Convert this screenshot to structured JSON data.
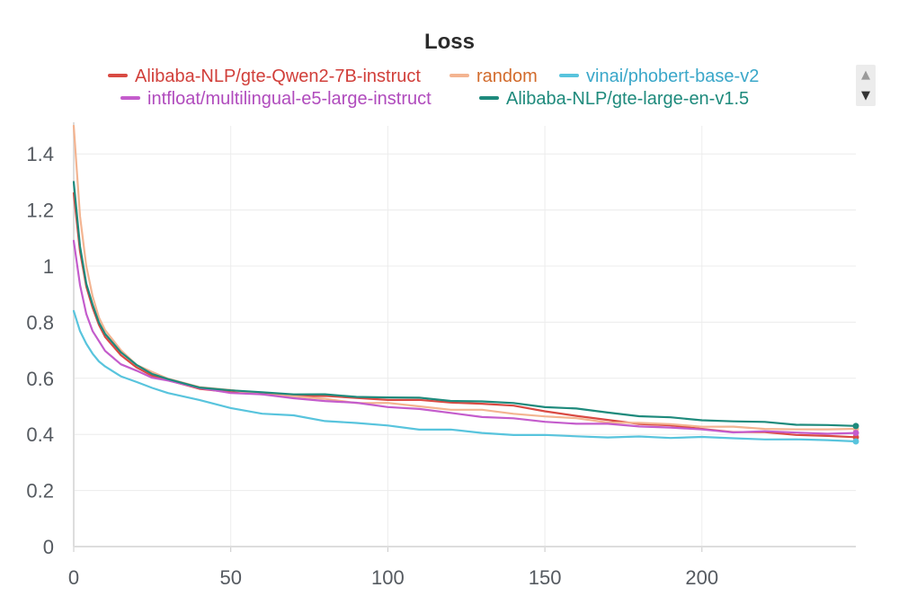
{
  "chart_data": {
    "type": "line",
    "title": "Loss",
    "xlabel": "",
    "ylabel": "",
    "xlim": [
      0,
      249
    ],
    "ylim": [
      0,
      1.5
    ],
    "x_ticks": [
      0,
      50,
      100,
      150,
      200
    ],
    "y_ticks": [
      0,
      0.2,
      0.4,
      0.6,
      0.8,
      1,
      1.2,
      1.4
    ],
    "x_tick_labels": [
      "0",
      "50",
      "100",
      "150",
      "200"
    ],
    "y_tick_labels": [
      "0",
      "0.2",
      "0.4",
      "0.6",
      "0.8",
      "1",
      "1.2",
      "1.4"
    ],
    "grid": true,
    "legend_position": "top",
    "series": [
      {
        "name": "Alibaba-NLP/gte-Qwen2-7B-instruct",
        "color": "#d94a43",
        "x": [
          0,
          2,
          4,
          6,
          8,
          10,
          15,
          20,
          25,
          30,
          40,
          50,
          60,
          70,
          80,
          90,
          100,
          110,
          120,
          130,
          140,
          150,
          160,
          170,
          180,
          190,
          200,
          210,
          220,
          230,
          240,
          249
        ],
        "y": [
          1.26,
          1.05,
          0.93,
          0.85,
          0.79,
          0.75,
          0.68,
          0.64,
          0.61,
          0.59,
          0.565,
          0.55,
          0.545,
          0.54,
          0.535,
          0.53,
          0.525,
          0.52,
          0.515,
          0.51,
          0.5,
          0.485,
          0.465,
          0.45,
          0.44,
          0.43,
          0.42,
          0.41,
          0.405,
          0.4,
          0.395,
          0.39
        ]
      },
      {
        "name": "random",
        "color": "#f3b491",
        "x": [
          0,
          2,
          4,
          6,
          8,
          10,
          15,
          20,
          25,
          30,
          40,
          50,
          60,
          70,
          80,
          90,
          100,
          110,
          120,
          130,
          140,
          150,
          160,
          170,
          180,
          190,
          200,
          210,
          220,
          230,
          240,
          249
        ],
        "y": [
          1.5,
          1.18,
          1.0,
          0.89,
          0.82,
          0.77,
          0.7,
          0.65,
          0.62,
          0.6,
          0.57,
          0.555,
          0.545,
          0.535,
          0.525,
          0.515,
          0.51,
          0.5,
          0.49,
          0.485,
          0.475,
          0.465,
          0.455,
          0.445,
          0.44,
          0.435,
          0.43,
          0.425,
          0.42,
          0.42,
          0.415,
          0.42
        ]
      },
      {
        "name": "vinai/phobert-base-v2",
        "color": "#58c4dd",
        "x": [
          0,
          2,
          4,
          6,
          8,
          10,
          15,
          20,
          25,
          30,
          40,
          50,
          60,
          70,
          80,
          90,
          100,
          110,
          120,
          130,
          140,
          150,
          160,
          170,
          180,
          190,
          200,
          210,
          220,
          230,
          240,
          249
        ],
        "y": [
          0.84,
          0.77,
          0.72,
          0.69,
          0.66,
          0.64,
          0.61,
          0.585,
          0.565,
          0.55,
          0.52,
          0.495,
          0.475,
          0.465,
          0.45,
          0.44,
          0.43,
          0.42,
          0.415,
          0.405,
          0.4,
          0.395,
          0.395,
          0.39,
          0.39,
          0.39,
          0.39,
          0.385,
          0.385,
          0.38,
          0.38,
          0.375
        ]
      },
      {
        "name": "intfloat/multilingual-e5-large-instruct",
        "color": "#c45ccc",
        "x": [
          0,
          2,
          4,
          6,
          8,
          10,
          15,
          20,
          25,
          30,
          40,
          50,
          60,
          70,
          80,
          90,
          100,
          110,
          120,
          130,
          140,
          150,
          160,
          170,
          180,
          190,
          200,
          210,
          220,
          230,
          240,
          249
        ],
        "y": [
          1.09,
          0.93,
          0.83,
          0.77,
          0.73,
          0.7,
          0.65,
          0.625,
          0.605,
          0.59,
          0.565,
          0.55,
          0.54,
          0.53,
          0.52,
          0.51,
          0.5,
          0.49,
          0.475,
          0.465,
          0.455,
          0.445,
          0.44,
          0.435,
          0.43,
          0.425,
          0.415,
          0.41,
          0.41,
          0.405,
          0.405,
          0.405
        ]
      },
      {
        "name": "Alibaba-NLP/gte-large-en-v1.5",
        "color": "#1e8a7c",
        "x": [
          0,
          2,
          4,
          6,
          8,
          10,
          15,
          20,
          25,
          30,
          40,
          50,
          60,
          70,
          80,
          90,
          100,
          110,
          120,
          130,
          140,
          150,
          160,
          170,
          180,
          190,
          200,
          210,
          220,
          230,
          240,
          249
        ],
        "y": [
          1.3,
          1.07,
          0.94,
          0.86,
          0.8,
          0.76,
          0.69,
          0.65,
          0.615,
          0.595,
          0.57,
          0.555,
          0.55,
          0.545,
          0.54,
          0.535,
          0.533,
          0.528,
          0.522,
          0.517,
          0.51,
          0.5,
          0.49,
          0.478,
          0.467,
          0.458,
          0.452,
          0.447,
          0.442,
          0.437,
          0.432,
          0.43
        ]
      }
    ]
  },
  "legend": {
    "items": [
      {
        "label": "Alibaba-NLP/gte-Qwen2-7B-instruct",
        "color": "#d94a43",
        "text_color": "#d13f3a"
      },
      {
        "label": "random",
        "color": "#f3b491",
        "text_color": "#d26b2c"
      },
      {
        "label": "vinai/phobert-base-v2",
        "color": "#58c4dd",
        "text_color": "#3aa7c9"
      },
      {
        "label": "intfloat/multilingual-e5-large-instruct",
        "color": "#c45ccc",
        "text_color": "#b04bbd"
      },
      {
        "label": "Alibaba-NLP/gte-large-en-v1.5",
        "color": "#1e8a7c",
        "text_color": "#1e8a7c"
      }
    ],
    "scroll_up_icon": "▲",
    "scroll_down_icon": "▼"
  }
}
